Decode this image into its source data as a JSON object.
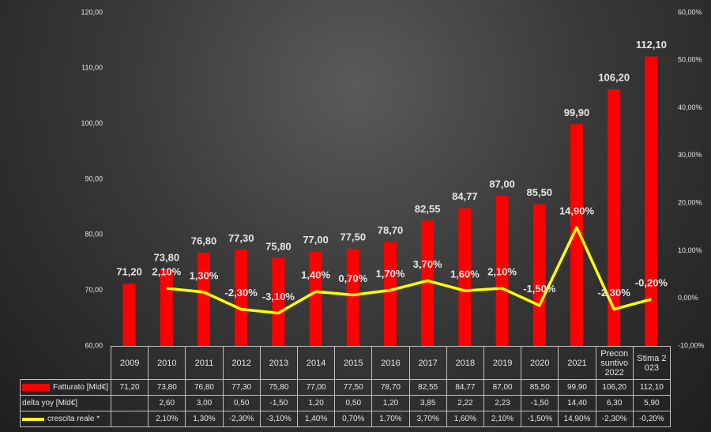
{
  "chart_data": {
    "type": "bar",
    "categories": [
      "2009",
      "2010",
      "2011",
      "2012",
      "2013",
      "2014",
      "2015",
      "2016",
      "2017",
      "2018",
      "2019",
      "2020",
      "2021",
      "Preconsuntivo 2022",
      "Stima 2023"
    ],
    "series": [
      {
        "name": "Fatturato [Mld€]",
        "type": "bar",
        "color": "#ff0000",
        "values": [
          71.2,
          73.8,
          76.8,
          77.3,
          75.8,
          77.0,
          77.5,
          78.7,
          82.55,
          84.77,
          87.0,
          85.5,
          99.9,
          106.2,
          112.1
        ],
        "value_labels": [
          "71,20",
          "73,80",
          "76,80",
          "77,30",
          "75,80",
          "77,00",
          "77,50",
          "78,70",
          "82,55",
          "84,77",
          "87,00",
          "85,50",
          "99,90",
          "106,20",
          "112,10"
        ]
      },
      {
        "name": "delta yoy [Mld€]",
        "type": "table",
        "values": [
          null,
          2.6,
          3.0,
          0.5,
          -1.5,
          1.2,
          0.5,
          1.2,
          3.85,
          2.22,
          2.23,
          -1.5,
          14.4,
          6.3,
          5.9
        ],
        "value_labels": [
          null,
          "2,60",
          "3,00",
          "0,50",
          "-1,50",
          "1,20",
          "0,50",
          "1,20",
          "3,85",
          "2,22",
          "2,23",
          "-1,50",
          "14,40",
          "6,30",
          "5,90"
        ]
      },
      {
        "name": "crescita reale *",
        "type": "line",
        "color": "#ffff00",
        "axis": "y2",
        "values": [
          null,
          2.1,
          1.3,
          -2.3,
          -3.1,
          1.4,
          0.7,
          1.7,
          3.7,
          1.6,
          2.1,
          -1.5,
          14.9,
          -2.3,
          -0.2
        ],
        "value_labels": [
          null,
          "2,10%",
          "1,30%",
          "-2,30%",
          "-3,10%",
          "1,40%",
          "0,70%",
          "1,70%",
          "3,70%",
          "1,60%",
          "2,10%",
          "-1,50%",
          "14,90%",
          "-2,30%",
          "-0,20%"
        ]
      }
    ],
    "ylim": [
      60,
      120
    ],
    "yticks": [
      {
        "value": 60,
        "label": "60,00"
      },
      {
        "value": 70,
        "label": "70,00"
      },
      {
        "value": 80,
        "label": "80,00"
      },
      {
        "value": 90,
        "label": "90,00"
      },
      {
        "value": 100,
        "label": "100,00"
      },
      {
        "value": 110,
        "label": "110,00"
      },
      {
        "value": 120,
        "label": "120,00"
      }
    ],
    "y2lim": [
      -10,
      60
    ],
    "y2ticks": [
      {
        "value": -10,
        "label": "-10,00%"
      },
      {
        "value": 0,
        "label": "0,00%"
      },
      {
        "value": 10,
        "label": "10,00%"
      },
      {
        "value": 20,
        "label": "20,00%"
      },
      {
        "value": 30,
        "label": "30,00%"
      },
      {
        "value": 40,
        "label": "40,00%"
      },
      {
        "value": 50,
        "label": "50,00%"
      },
      {
        "value": 60,
        "label": "60,00%"
      }
    ],
    "grid": false
  }
}
